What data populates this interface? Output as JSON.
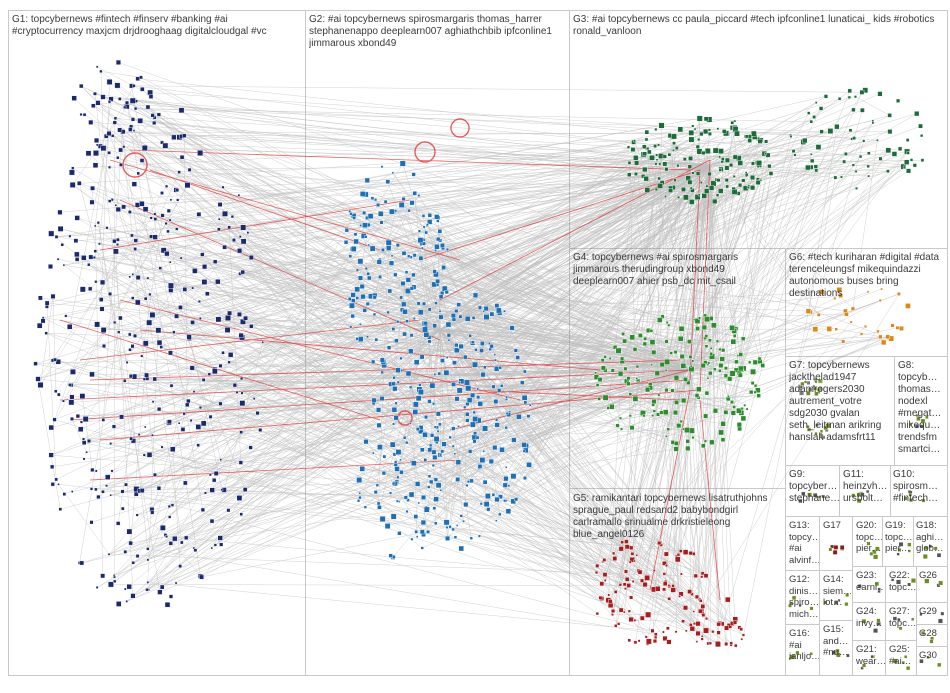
{
  "groups": [
    {
      "id": "G1",
      "label": "G1: topcybernews #fintech #finserv #banking #ai #cryptocurrency maxjcm drjdrooghaag digitalcloudgal #vc",
      "color": "#1b2a6b"
    },
    {
      "id": "G2",
      "label": "G2: #ai topcybernews spirosmargaris thomas_harrer stephanenappo deeplearn007 aghiathchbib ipfconline1 jimmarous xbond49",
      "color": "#1f6fb5"
    },
    {
      "id": "G3",
      "label": "G3: #ai topcybernews cc paula_piccard #tech ipfconline1 lunaticai_ kids #robotics ronald_vanloon",
      "color": "#1e6b3a"
    },
    {
      "id": "G4",
      "label": "G4: topcybernews #ai spirosmargaris jimmarous therudingroup xbond49 deeplearn007 ahier psb_dc mit_csail",
      "color": "#2e8b2e"
    },
    {
      "id": "G5",
      "label": "G5: ramikantari topcybernews lisatruthjohns sprague_paul redsand2 babybondgirl carlramallo srinualme drkristieleong blue_angel0126",
      "color": "#a81e1e"
    },
    {
      "id": "G6",
      "label": "G6: #tech kuriharan #digital #data terenceleungsf mikequindazzi autonomous buses bring destinations",
      "color": "#d98a1c"
    },
    {
      "id": "G7",
      "label": "G7: topcybernews jackthelad1947 adamrogers2030 autrement_votre sdg2030 gvalan seth_leitman arikring hanslak adamsfrt11",
      "color": "#7a7a7a"
    },
    {
      "id": "G8",
      "label": "G8: topcyb… thomas… nodexl #megat… mikequ… trendsfm smartci…",
      "color": "#555555"
    },
    {
      "id": "G9",
      "label": "G9: topcyber… stephane…",
      "color": "#555555"
    },
    {
      "id": "G11",
      "label": "G11: heinzvh… ursbolt…",
      "color": "#555555"
    },
    {
      "id": "G10",
      "label": "G10: spirosm… #fintech…",
      "color": "#555555"
    },
    {
      "id": "G13",
      "label": "G13: topcy… #ai alvinf…",
      "color": "#555555"
    },
    {
      "id": "G17",
      "label": "G17",
      "color": "#8b1a1a"
    },
    {
      "id": "G20",
      "label": "G20: topc… pier…",
      "color": "#6a8f2b"
    },
    {
      "id": "G19",
      "label": "G19: topc… pier…",
      "color": "#555555"
    },
    {
      "id": "G18",
      "label": "G18: aghi… glob…",
      "color": "#555555"
    },
    {
      "id": "G12",
      "label": "G12: dinis… spiro… mich…",
      "color": "#555555"
    },
    {
      "id": "G14",
      "label": "G14: siem… lot…",
      "color": "#555555"
    },
    {
      "id": "G23",
      "label": "G23: earni…",
      "color": "#555555"
    },
    {
      "id": "G22",
      "label": "G22: topc…",
      "color": "#555555"
    },
    {
      "id": "G26",
      "label": "G26",
      "color": "#555555"
    },
    {
      "id": "G24",
      "label": "G24: invy…",
      "color": "#555555"
    },
    {
      "id": "G27",
      "label": "G27: topc…",
      "color": "#555555"
    },
    {
      "id": "G29",
      "label": "G29",
      "color": "#555555"
    },
    {
      "id": "G28",
      "label": "G28",
      "color": "#555555"
    },
    {
      "id": "G16",
      "label": "G16: #ai ianljo…",
      "color": "#555555"
    },
    {
      "id": "G15",
      "label": "G15: and… #nu…",
      "color": "#555555"
    },
    {
      "id": "G21",
      "label": "G21: wear…",
      "color": "#555555"
    },
    {
      "id": "G25",
      "label": "G25: #ai…",
      "color": "#555555"
    },
    {
      "id": "G30",
      "label": "G30",
      "color": "#555555"
    }
  ],
  "colors": {
    "edge_gray": "#8a8a8a",
    "edge_red": "#e02020",
    "box_border": "#c9c9c9"
  }
}
